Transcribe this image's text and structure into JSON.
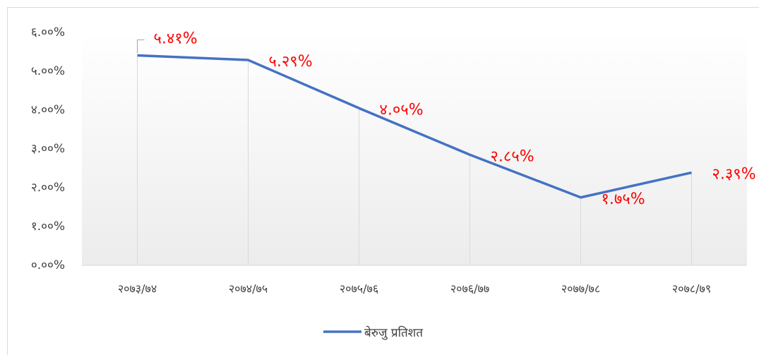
{
  "chart_data": {
    "type": "line",
    "categories": [
      "२०७३/७४",
      "२०७४/७५",
      "२०७५/७६",
      "२०७६/७७",
      "२०७७/७८",
      "२०७८/७९"
    ],
    "series": [
      {
        "name": "बेरुजु प्रतिशत",
        "color": "#4472c4",
        "values": [
          5.41,
          5.29,
          4.05,
          2.85,
          1.75,
          2.39
        ],
        "value_labels": [
          "५.४१%",
          "५.२९%",
          "४.०५%",
          "२.८५%",
          "१.७५%",
          "२.३९%"
        ]
      }
    ],
    "ylim": [
      0,
      6
    ],
    "yticks": [
      {
        "value": 0,
        "label": "०.००%"
      },
      {
        "value": 1,
        "label": "१.००%"
      },
      {
        "value": 2,
        "label": "२.००%"
      },
      {
        "value": 3,
        "label": "३.००%"
      },
      {
        "value": 4,
        "label": "४.००%"
      },
      {
        "value": 5,
        "label": "५.००%"
      },
      {
        "value": 6,
        "label": "६.००%"
      }
    ],
    "grid": false,
    "legend": "bottom",
    "label_color": "#ff0000"
  }
}
